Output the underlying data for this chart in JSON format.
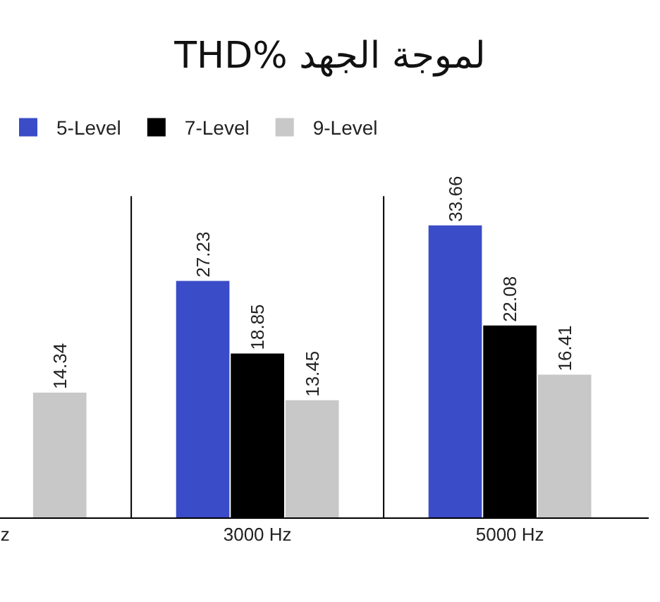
{
  "chart_data": {
    "type": "bar",
    "title": "THD% لموجة الجهد",
    "categories": [
      "z",
      "3000 Hz",
      "5000 Hz"
    ],
    "series": [
      {
        "name": "5-Level",
        "color": "#3a4cc8",
        "values": [
          null,
          27.23,
          33.66
        ]
      },
      {
        "name": "7-Level",
        "color": "#000000",
        "values": [
          null,
          18.85,
          22.08
        ]
      },
      {
        "name": "9-Level",
        "color": "#c8c8c8",
        "values": [
          14.34,
          13.45,
          16.41
        ]
      }
    ],
    "data_labels": true,
    "legend": "top left",
    "grid": "x"
  }
}
